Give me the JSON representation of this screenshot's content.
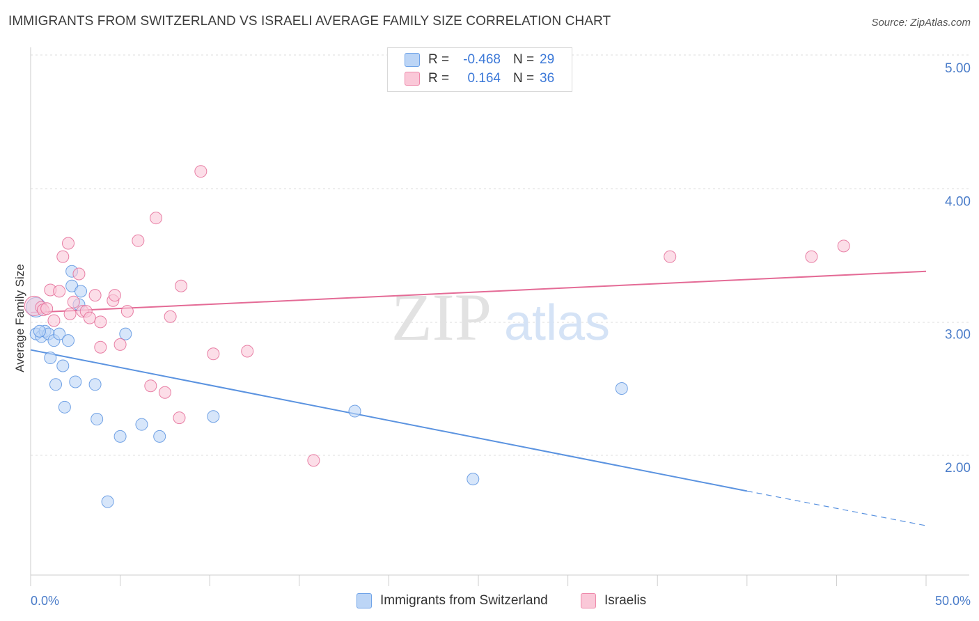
{
  "header": {
    "title": "IMMIGRANTS FROM SWITZERLAND VS ISRAELI AVERAGE FAMILY SIZE CORRELATION CHART",
    "source": "Source: ZipAtlas.com"
  },
  "watermark": {
    "zip": "ZIP",
    "atlas": "atlas"
  },
  "legend": {
    "rows": [
      {
        "r_label": "R =",
        "r_value": "-0.468",
        "n_label": "N =",
        "n_value": "29",
        "color": "#6fa3e8",
        "fill": "#bcd5f6"
      },
      {
        "r_label": "R =",
        "r_value": "0.164",
        "n_label": "N =",
        "n_value": "36",
        "color": "#ee88aa",
        "fill": "#fac8d8"
      }
    ]
  },
  "bottom_legend": {
    "items": [
      {
        "label": "Immigrants from Switzerland"
      },
      {
        "label": "Israelis"
      }
    ]
  },
  "chart_data": {
    "type": "scatter",
    "title": "IMMIGRANTS FROM SWITZERLAND VS ISRAELI AVERAGE FAMILY SIZE CORRELATION CHART",
    "xlabel": "",
    "ylabel": "Average Family Size",
    "xlim": [
      0,
      50
    ],
    "ylim": [
      1.2,
      5.15
    ],
    "x_tick_labels": [
      "0.0%",
      "50.0%"
    ],
    "y_ticks": [
      2.0,
      3.0,
      4.0,
      5.0
    ],
    "y_tick_labels": [
      "2.00",
      "3.00",
      "4.00",
      "5.00"
    ],
    "grid": true,
    "legend_position": "top-center",
    "series": [
      {
        "name": "Immigrants from Switzerland",
        "color": "#5b93e0",
        "fill": "#bcd5f6",
        "points": [
          [
            0.3,
            3.2
          ],
          [
            0.3,
            3.0
          ],
          [
            0.6,
            2.98
          ],
          [
            0.8,
            3.02
          ],
          [
            1.0,
            3.0
          ],
          [
            1.1,
            2.82
          ],
          [
            1.3,
            2.95
          ],
          [
            1.4,
            2.62
          ],
          [
            1.6,
            3.0
          ],
          [
            1.8,
            2.76
          ],
          [
            1.9,
            2.45
          ],
          [
            2.1,
            2.95
          ],
          [
            2.3,
            3.47
          ],
          [
            2.3,
            3.36
          ],
          [
            2.5,
            2.64
          ],
          [
            2.7,
            3.22
          ],
          [
            2.8,
            3.32
          ],
          [
            3.6,
            2.62
          ],
          [
            3.7,
            2.36
          ],
          [
            4.3,
            1.74
          ],
          [
            5.0,
            2.23
          ],
          [
            5.3,
            3.0
          ],
          [
            6.2,
            2.32
          ],
          [
            7.2,
            2.23
          ],
          [
            10.2,
            2.38
          ],
          [
            18.1,
            2.42
          ],
          [
            24.7,
            1.91
          ],
          [
            33.0,
            2.59
          ],
          [
            0.5,
            3.02
          ]
        ],
        "trend": {
          "x": [
            0,
            40
          ],
          "y": [
            2.88,
            1.82
          ]
        },
        "trend_dashed": {
          "x": [
            40,
            50
          ],
          "y": [
            1.82,
            1.56
          ]
        }
      },
      {
        "name": "Israelis",
        "color": "#e46b96",
        "fill": "#fac8d8",
        "points": [
          [
            0.2,
            3.21
          ],
          [
            0.6,
            3.2
          ],
          [
            0.7,
            3.18
          ],
          [
            0.9,
            3.19
          ],
          [
            1.1,
            3.33
          ],
          [
            1.3,
            3.1
          ],
          [
            1.6,
            3.32
          ],
          [
            1.8,
            3.58
          ],
          [
            2.1,
            3.68
          ],
          [
            2.2,
            3.15
          ],
          [
            2.4,
            3.24
          ],
          [
            2.7,
            3.45
          ],
          [
            2.9,
            3.17
          ],
          [
            3.1,
            3.17
          ],
          [
            3.3,
            3.12
          ],
          [
            3.6,
            3.29
          ],
          [
            3.9,
            3.09
          ],
          [
            3.9,
            2.9
          ],
          [
            4.6,
            3.25
          ],
          [
            4.7,
            3.29
          ],
          [
            5.0,
            2.92
          ],
          [
            5.4,
            3.17
          ],
          [
            6.0,
            3.7
          ],
          [
            6.7,
            2.61
          ],
          [
            7.0,
            3.87
          ],
          [
            7.5,
            2.56
          ],
          [
            7.8,
            3.13
          ],
          [
            8.3,
            2.37
          ],
          [
            8.4,
            3.36
          ],
          [
            9.5,
            4.22
          ],
          [
            10.2,
            2.85
          ],
          [
            12.1,
            2.87
          ],
          [
            15.8,
            2.05
          ],
          [
            35.7,
            3.58
          ],
          [
            43.6,
            3.58
          ],
          [
            45.4,
            3.66
          ]
        ],
        "trend": {
          "x": [
            0,
            50
          ],
          "y": [
            3.16,
            3.47
          ]
        }
      }
    ]
  }
}
